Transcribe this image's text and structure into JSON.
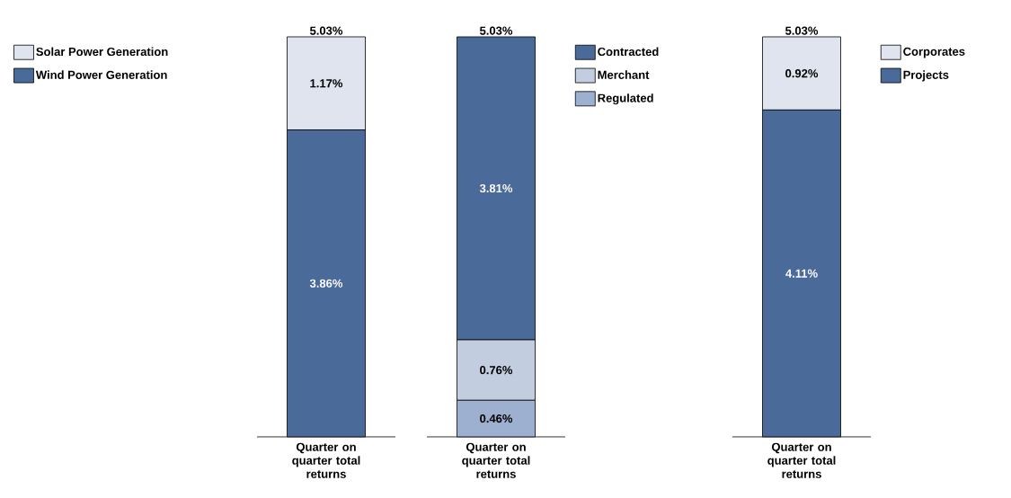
{
  "chart_data": [
    {
      "type": "bar",
      "stacked": true,
      "legend": "top left",
      "categories": [
        "Quarter on quarter total returns"
      ],
      "totals": [
        "5.03%"
      ],
      "series": [
        {
          "name": "Wind Power Generation",
          "color": "#4a6a9a",
          "values": [
            3.86
          ],
          "value_labels": [
            "3.86%"
          ]
        },
        {
          "name": "Solar Power Generation",
          "color": "#dfe4ee",
          "values": [
            1.17
          ],
          "value_labels": [
            "1.17%"
          ]
        }
      ]
    },
    {
      "type": "bar",
      "stacked": true,
      "legend": "top right",
      "categories": [
        "Quarter on quarter total returns"
      ],
      "totals": [
        "5.03%"
      ],
      "series": [
        {
          "name": "Regulated",
          "color": "#9eb0d0",
          "values": [
            0.46
          ],
          "value_labels": [
            "0.46%"
          ]
        },
        {
          "name": "Merchant",
          "color": "#c3cde0",
          "values": [
            0.76
          ],
          "value_labels": [
            "0.76%"
          ]
        },
        {
          "name": "Contracted",
          "color": "#4a6a9a",
          "values": [
            3.81
          ],
          "value_labels": [
            "3.81%"
          ]
        }
      ]
    },
    {
      "type": "bar",
      "stacked": true,
      "legend": "top right",
      "categories": [
        "Quarter on quarter total returns"
      ],
      "totals": [
        "5.03%"
      ],
      "series": [
        {
          "name": "Projects",
          "color": "#4a6a9a",
          "values": [
            4.11
          ],
          "value_labels": [
            "4.11%"
          ]
        },
        {
          "name": "Corporates",
          "color": "#dfe4ee",
          "values": [
            0.92
          ],
          "value_labels": [
            "0.92%"
          ]
        }
      ]
    }
  ]
}
